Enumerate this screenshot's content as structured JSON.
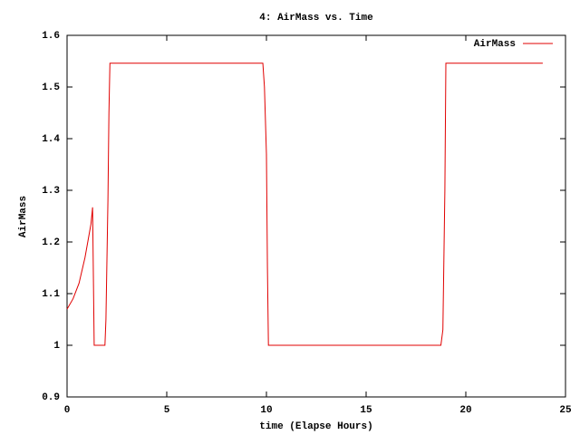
{
  "chart_data": {
    "type": "line",
    "title": "4: AirMass vs. Time",
    "xlabel": "time (Elapse Hours)",
    "ylabel": "AirMass",
    "x": [
      0,
      0.3,
      0.6,
      0.9,
      1.2,
      1.28,
      1.36,
      1.9,
      1.95,
      2.05,
      2.1,
      2.15,
      9.82,
      9.9,
      10.0,
      10.05,
      10.1,
      18.75,
      18.85,
      18.95,
      19.0,
      23.86
    ],
    "series": [
      {
        "name": "AirMass",
        "color": "#e00000",
        "values": [
          1.07,
          1.09,
          1.12,
          1.17,
          1.235,
          1.267,
          1.0,
          1.0,
          1.05,
          1.28,
          1.45,
          1.546,
          1.546,
          1.5,
          1.37,
          1.15,
          1.0,
          1.0,
          1.03,
          1.3,
          1.546,
          1.546
        ]
      }
    ],
    "xlim": [
      0,
      25
    ],
    "xticks": [
      0,
      5,
      10,
      15,
      20,
      25
    ],
    "ylim": [
      0.9,
      1.6
    ],
    "yticks": [
      0.9,
      1,
      1.1,
      1.2,
      1.3,
      1.4,
      1.5,
      1.6
    ],
    "legend": "top-right",
    "grid": false
  }
}
